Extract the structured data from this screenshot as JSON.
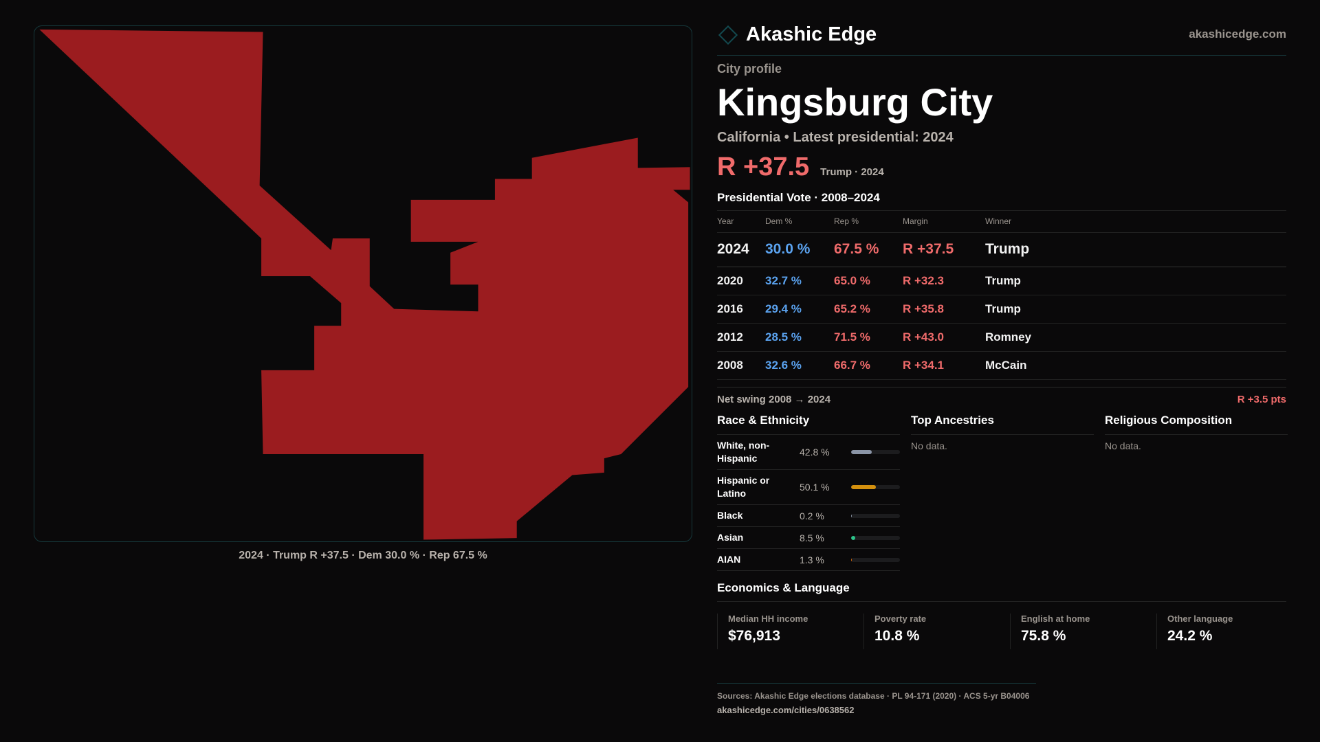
{
  "brand": {
    "name": "Akashic Edge",
    "site": "akashicedge.com"
  },
  "map": {
    "caption": "2024 · Trump R +37.5 · Dem 30.0 % · Rep 67.5 %",
    "fill": "#9b1c1f"
  },
  "profile": {
    "label": "City profile",
    "title": "Kingsburg City",
    "subtitle": "California • Latest presidential: 2024",
    "margin": "R +37.5",
    "margin_note": "Trump · 2024"
  },
  "votes": {
    "title": "Presidential Vote · 2008–2024",
    "headers": [
      "Year",
      "Dem %",
      "Rep %",
      "Margin",
      "Winner"
    ],
    "rows": [
      [
        "2024",
        "30.0 %",
        "67.5 %",
        "R +37.5",
        "Trump"
      ],
      [
        "2020",
        "32.7 %",
        "65.0 %",
        "R +32.3",
        "Trump"
      ],
      [
        "2016",
        "29.4 %",
        "65.2 %",
        "R +35.8",
        "Trump"
      ],
      [
        "2012",
        "28.5 %",
        "71.5 %",
        "R +43.0",
        "Romney"
      ],
      [
        "2008",
        "32.6 %",
        "66.7 %",
        "R +34.1",
        "McCain"
      ]
    ],
    "swing_label": "Net swing 2008 → 2024",
    "swing_value": "R +3.5 pts"
  },
  "race": {
    "title": "Race & Ethnicity",
    "items": [
      {
        "label": "White, non-Hispanic",
        "value": "42.8 %",
        "pct": 42.8,
        "color": "#8a94a6"
      },
      {
        "label": "Hispanic or Latino",
        "value": "50.1 %",
        "pct": 50.1,
        "color": "#d4900e"
      },
      {
        "label": "Black",
        "value": "0.2 %",
        "pct": 0.2,
        "color": "#8a94a6"
      },
      {
        "label": "Asian",
        "value": "8.5 %",
        "pct": 8.5,
        "color": "#2cc48a"
      },
      {
        "label": "AIAN",
        "value": "1.3 %",
        "pct": 1.3,
        "color": "#d46a0e"
      }
    ]
  },
  "ancestries": {
    "title": "Top Ancestries",
    "empty": "No data."
  },
  "religion": {
    "title": "Religious Composition",
    "empty": "No data."
  },
  "economics": {
    "title": "Economics & Language",
    "cards": [
      {
        "label": "Median HH income",
        "value": "$76,913"
      },
      {
        "label": "Poverty rate",
        "value": "10.8 %"
      },
      {
        "label": "English at home",
        "value": "75.8 %"
      },
      {
        "label": "Other language",
        "value": "24.2 %"
      }
    ]
  },
  "footer": {
    "sources": "Sources: Akashic Edge elections database · PL 94-171 (2020) · ACS 5-yr B04006",
    "url": "akashicedge.com/cities/0638562"
  }
}
